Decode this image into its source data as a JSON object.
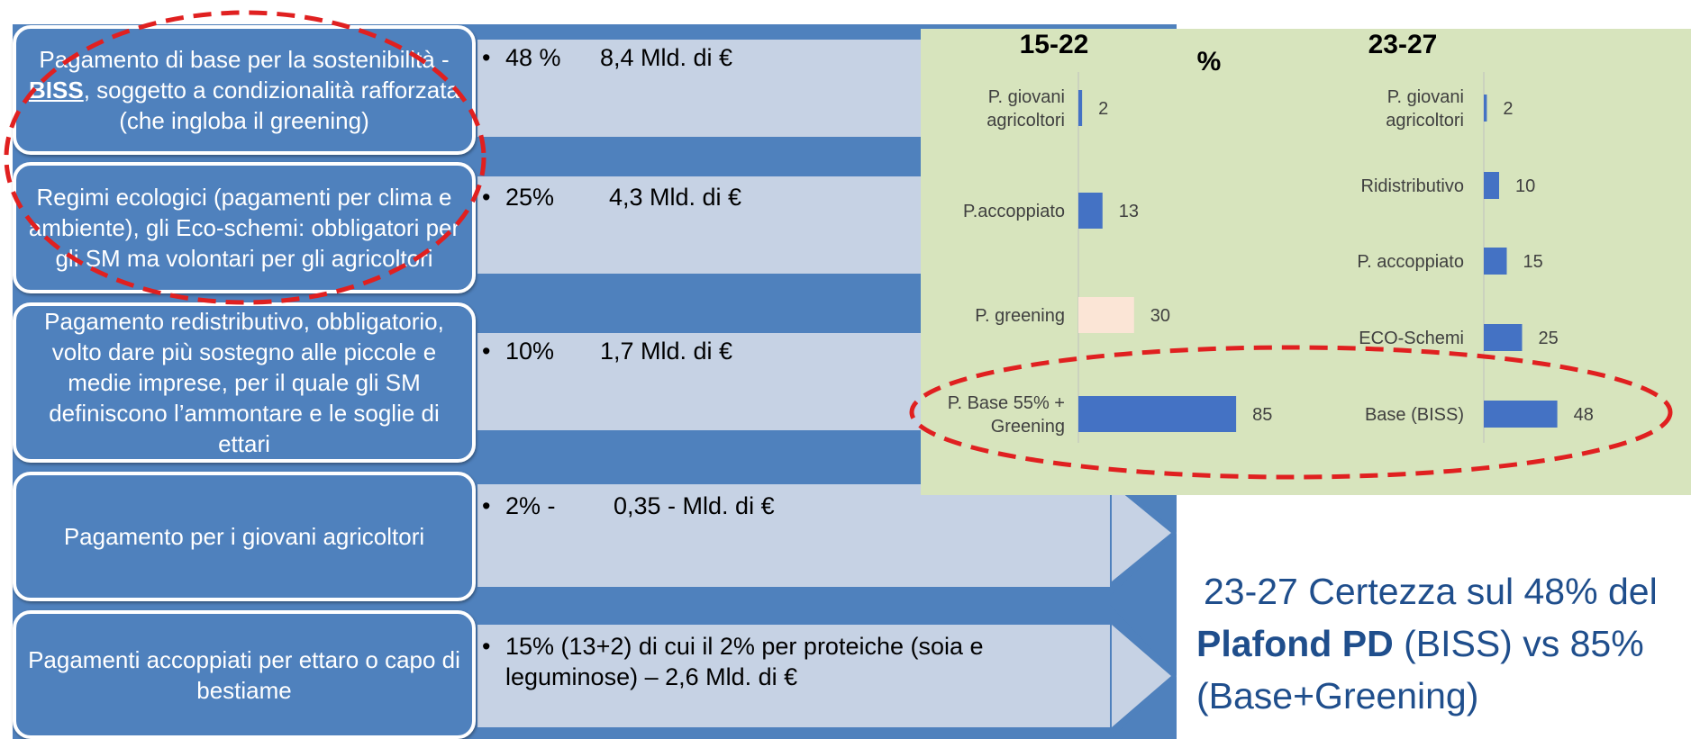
{
  "left_rows": [
    {
      "box_pre": "Pagamento di base per la sostenibilità - ",
      "box_strong": "BISS",
      "box_post": ", soggetto a condizionalità rafforzata (che ingloba il greening)",
      "pct": "48 %",
      "amount": "8,4 Mld. di €"
    },
    {
      "box": "Regimi ecologici (pagamenti per clima e ambiente), gli Eco-schemi: obbligatori per gli SM ma volontari per gli agricoltori",
      "pct": "25%",
      "amount": "4,3 Mld. di €"
    },
    {
      "box": "Pagamento redistributivo, obbligatorio, volto dare più sostegno alle piccole e medie imprese, per il quale gli SM definiscono l’ammontare e le soglie di ettari",
      "pct": "10%",
      "amount": "1,7 Mld. di €"
    },
    {
      "box": "Pagamento per i giovani agricoltori",
      "pct": "2% -",
      "amount": "0,35 - Mld. di €"
    },
    {
      "box": "Pagamenti accoppiati per ettaro o capo di bestiame",
      "line1": "15% (13+2) di cui il 2% per proteiche (soia e",
      "line2": "leguminose)  – 2,6 Mld. di €"
    }
  ],
  "chart_data": [
    {
      "type": "bar",
      "orientation": "horizontal",
      "title": "15-22",
      "categories": [
        "P. giovani agricoltori",
        "P.accoppiato",
        "P. greening",
        "P. Base 55% + Greening"
      ],
      "values": [
        2,
        13,
        30,
        85
      ],
      "bar_colors": [
        "#4472c4",
        "#4472c4",
        "#fbe5d6",
        "#4472c4"
      ],
      "data_labels": true,
      "grid": false
    },
    {
      "type": "bar",
      "orientation": "horizontal",
      "title": "23-27",
      "categories": [
        "P. giovani agricoltori",
        "Ridistributivo",
        "P. accoppiato",
        "ECO-Schemi",
        "Base (BISS)"
      ],
      "values": [
        2,
        10,
        15,
        25,
        48
      ],
      "bar_colors": [
        "#4472c4",
        "#4472c4",
        "#4472c4",
        "#4472c4",
        "#4472c4"
      ],
      "data_labels": true,
      "grid": false
    }
  ],
  "chart_unit_label": "%",
  "big_text": {
    "line1": "23-27 Certezza sul 48% del",
    "bold": "Plafond PD",
    "line2_rest": " (BISS) vs 85%",
    "line3": "(Base+Greening)"
  },
  "colors": {
    "box_fill": "#4f81bd",
    "arrow_fill": "#c6d2e4",
    "arrow_dark": "#4f81bd",
    "chart_bg": "#d7e4bd",
    "bar": "#4472c4",
    "highlight": "#e02020",
    "big_text": "#1f4e8c"
  }
}
